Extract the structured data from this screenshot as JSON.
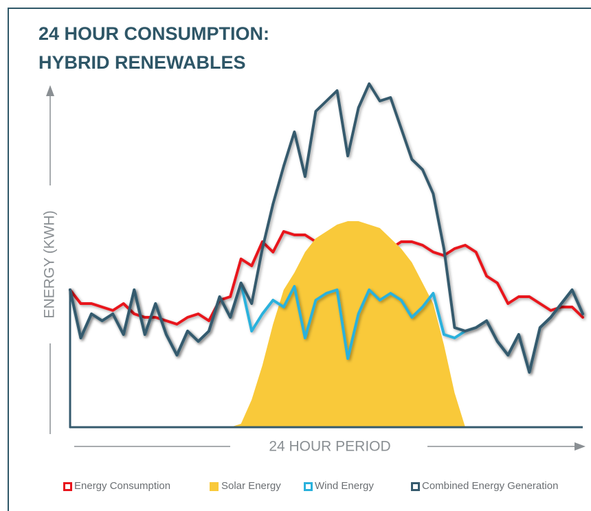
{
  "chart_data": {
    "type": "line",
    "title": [
      "24 HOUR CONSUMPTION:",
      "HYBRID RENEWABLES"
    ],
    "x_label": "24 HOUR PERIOD",
    "y_label": "ENERGY (KWH)",
    "xlim": [
      0,
      24
    ],
    "ylim": [
      0,
      100
    ],
    "x": [
      0,
      0.5,
      1,
      1.5,
      2,
      2.5,
      3,
      3.5,
      4,
      4.5,
      5,
      5.5,
      6,
      6.5,
      7,
      7.5,
      8,
      8.5,
      9,
      9.5,
      10,
      10.5,
      11,
      11.5,
      12,
      12.5,
      13,
      13.5,
      14,
      14.5,
      15,
      15.5,
      16,
      16.5,
      17,
      17.5,
      18,
      18.5,
      19,
      19.5,
      20,
      20.5,
      21,
      21.5,
      22,
      22.5,
      23,
      23.5,
      24
    ],
    "series": [
      {
        "name": "Energy Consumption",
        "color": "#e8141c",
        "fill": false,
        "values": [
          40,
          36,
          36,
          35,
          34,
          36,
          33,
          32,
          32,
          31,
          30,
          32,
          33,
          31,
          37,
          38,
          49,
          47,
          54,
          51,
          57,
          56,
          56,
          54,
          55,
          54,
          55,
          56,
          55,
          53,
          52,
          54,
          54,
          53,
          51,
          50,
          52,
          53,
          51,
          44,
          42,
          36,
          38,
          38,
          36,
          34,
          35,
          35,
          32
        ]
      },
      {
        "name": "Solar Energy",
        "color": "#f9c93a",
        "fill": true,
        "values": [
          0,
          0,
          0,
          0,
          0,
          0,
          0,
          0,
          0,
          0,
          0,
          0,
          0,
          0,
          0,
          0,
          1,
          8,
          18,
          30,
          40,
          45,
          51,
          55,
          57,
          59,
          60,
          60,
          59,
          58,
          55,
          52,
          48,
          42,
          36,
          24,
          10,
          0,
          0,
          0,
          0,
          0,
          0,
          0,
          0,
          0,
          0,
          0,
          0
        ]
      },
      {
        "name": "Wind Energy",
        "color": "#29b1dc",
        "fill": false,
        "values": [
          40,
          26,
          33,
          31,
          33,
          27,
          40,
          27,
          36,
          27,
          21,
          28,
          25,
          28,
          38,
          32,
          42,
          28,
          33,
          37,
          35,
          41,
          26,
          37,
          39,
          40,
          20,
          33,
          40,
          37,
          39,
          37,
          32,
          35,
          39,
          27,
          26,
          28,
          29,
          31,
          25,
          21,
          27,
          16,
          29,
          32,
          36,
          40,
          33
        ]
      },
      {
        "name": "Combined Energy Generation",
        "color": "#355a6d",
        "fill": false,
        "values": [
          40,
          26,
          33,
          31,
          33,
          27,
          40,
          27,
          36,
          27,
          21,
          28,
          25,
          28,
          38,
          32,
          42,
          36,
          52,
          65,
          76,
          86,
          73,
          92,
          95,
          98,
          79,
          93,
          100,
          95,
          96,
          87,
          78,
          75,
          68,
          52,
          29,
          28,
          29,
          31,
          25,
          21,
          27,
          16,
          29,
          32,
          36,
          40,
          33
        ]
      }
    ]
  }
}
